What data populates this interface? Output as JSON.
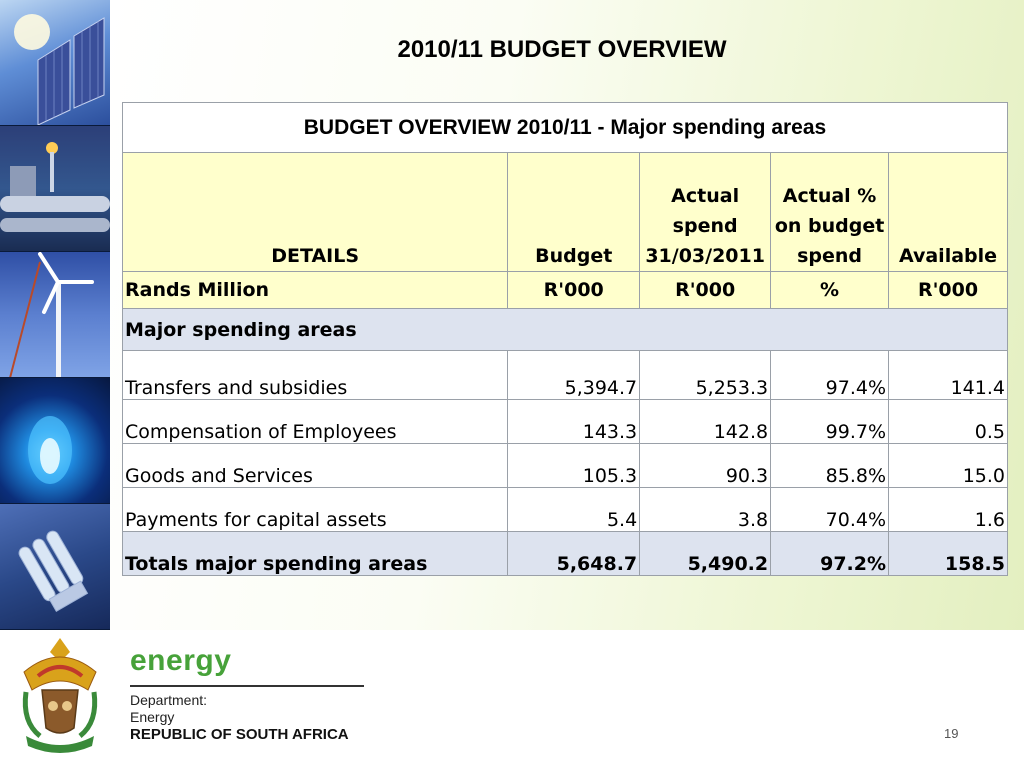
{
  "title": "2010/11 BUDGET OVERVIEW",
  "table": {
    "caption": "BUDGET OVERVIEW 2010/11 -  Major spending areas",
    "headers": {
      "details": "DETAILS",
      "budget": "Budget",
      "actual_spend": [
        "Actual",
        "spend",
        "31/03/2011"
      ],
      "actual_pct": [
        "Actual %",
        "on budget",
        "spend"
      ],
      "available": "Available"
    },
    "units": [
      "Rands Million",
      "R'000",
      "R'000",
      "%",
      "R'000"
    ],
    "section": "Major spending areas",
    "rows": [
      [
        "Transfers and subsidies",
        "5,394.7",
        "5,253.3",
        "97.4%",
        "141.4"
      ],
      [
        "Compensation of Employees",
        "143.3",
        "142.8",
        "99.7%",
        "0.5"
      ],
      [
        "Goods and Services",
        "105.3",
        "90.3",
        "85.8%",
        "15.0"
      ],
      [
        "Payments for capital assets",
        "5.4",
        "3.8",
        "70.4%",
        "1.6"
      ]
    ],
    "total": [
      "Totals major spending areas",
      "5,648.7",
      "5,490.2",
      "97.2%",
      "158.5"
    ]
  },
  "footer": {
    "brand": "energy",
    "department_lines": [
      "Department:",
      "Energy"
    ],
    "country": "REPUBLIC OF SOUTH AFRICA",
    "page_number": "19"
  },
  "icons": [
    "coat-of-arms-icon"
  ]
}
